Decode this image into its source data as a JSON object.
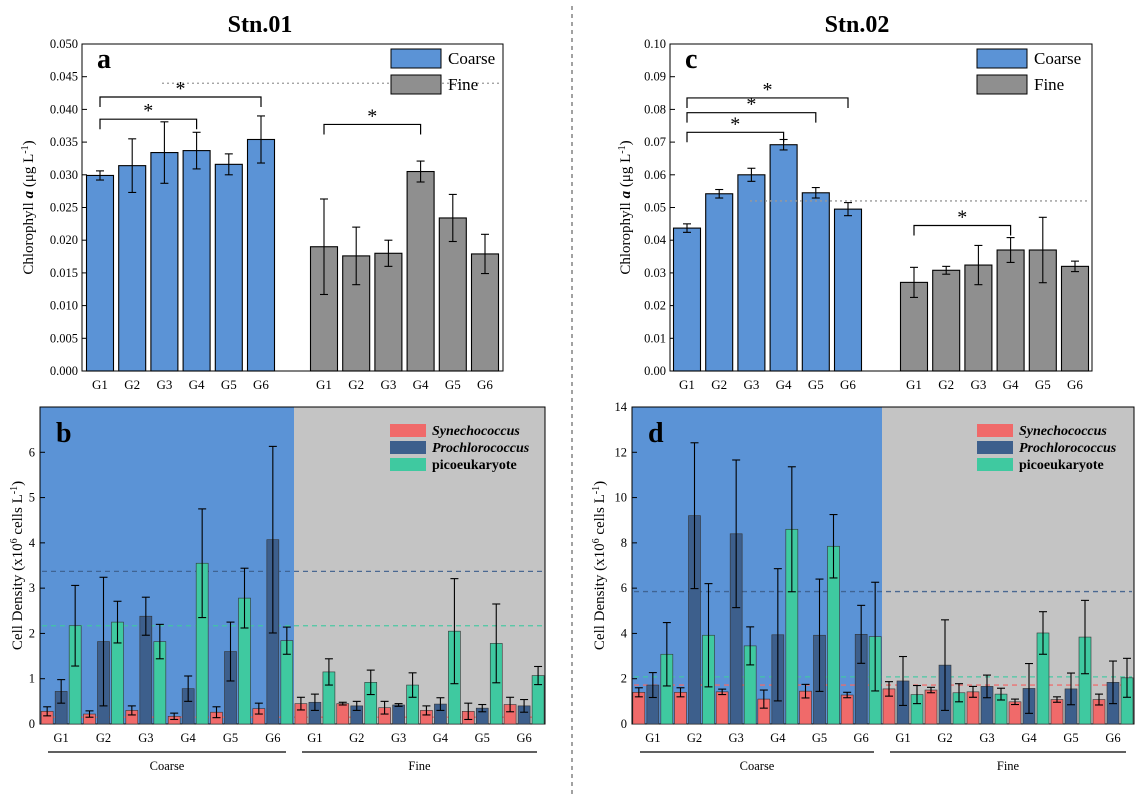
{
  "stations": [
    "Stn.01",
    "Stn.02"
  ],
  "legend_top": [
    "Coarse",
    "Fine"
  ],
  "legend_bottom": [
    "Synechococcus",
    "Prochlorococcus",
    "picoeukaryote"
  ],
  "group_labels": [
    "Coarse",
    "Fine"
  ],
  "colors": {
    "coarse": "#5b93d6",
    "fine": "#8f8f8f",
    "panel_bg_coarse": "#5b93d6",
    "panel_bg_fine": "#c4c4c4",
    "synechococcus": "#f06a6a",
    "prochlorococcus": "#3d5f8c",
    "picoeukaryote": "#3fc9a0"
  },
  "chart_data": [
    {
      "panel": "a",
      "type": "bar",
      "ylabel": "Chlorophyll a (μg L⁻¹)",
      "ylim": [
        0,
        0.05
      ],
      "yticks": [
        "0.000",
        "0.005",
        "0.010",
        "0.015",
        "0.020",
        "0.025",
        "0.030",
        "0.035",
        "0.040",
        "0.045",
        "0.050"
      ],
      "categories": [
        "G1",
        "G2",
        "G3",
        "G4",
        "G5",
        "G6"
      ],
      "series": [
        {
          "name": "Coarse",
          "values": [
            0.0299,
            0.0314,
            0.0334,
            0.0337,
            0.0316,
            0.0354
          ],
          "errors": [
            0.0007,
            0.0041,
            0.0047,
            0.0028,
            0.0016,
            0.0036
          ]
        },
        {
          "name": "Fine",
          "values": [
            0.019,
            0.0176,
            0.018,
            0.0305,
            0.0234,
            0.0179
          ],
          "errors": [
            0.0073,
            0.0044,
            0.002,
            0.0016,
            0.0036,
            0.003
          ]
        }
      ],
      "reference_line": 0.044,
      "significance": [
        {
          "group": "Coarse",
          "from": "G1",
          "to": "G6",
          "label": "*",
          "level": 0.0419
        },
        {
          "group": "Coarse",
          "from": "G1",
          "to": "G4",
          "label": "*",
          "level": 0.0385
        },
        {
          "group": "Fine",
          "from": "G1",
          "to": "G4",
          "label": "*",
          "level": 0.0377
        }
      ]
    },
    {
      "panel": "b",
      "type": "bar",
      "ylabel": "Cell Density (x10⁶ cells L⁻¹)",
      "ylim": [
        0,
        7
      ],
      "yticks": [
        "0",
        "1",
        "2",
        "3",
        "4",
        "5",
        "6"
      ],
      "groups": [
        "Coarse",
        "Fine"
      ],
      "categories": [
        "G1",
        "G2",
        "G3",
        "G4",
        "G5",
        "G6"
      ],
      "series": [
        {
          "name": "Synechococcus",
          "coarse": [
            0.28,
            0.22,
            0.3,
            0.17,
            0.26,
            0.34
          ],
          "coarse_err": [
            0.1,
            0.07,
            0.1,
            0.07,
            0.12,
            0.12
          ],
          "fine": [
            0.45,
            0.45,
            0.36,
            0.3,
            0.28,
            0.43
          ],
          "fine_err": [
            0.14,
            0.03,
            0.14,
            0.1,
            0.18,
            0.16
          ]
        },
        {
          "name": "Prochlorococcus",
          "coarse": [
            0.72,
            1.82,
            2.38,
            0.78,
            1.6,
            4.07
          ],
          "coarse_err": [
            0.26,
            1.42,
            0.42,
            0.28,
            0.65,
            2.06
          ],
          "fine": [
            0.48,
            0.4,
            0.42,
            0.44,
            0.35,
            0.4
          ],
          "fine_err": [
            0.18,
            0.1,
            0.03,
            0.14,
            0.08,
            0.14
          ]
        },
        {
          "name": "picoeukaryote",
          "coarse": [
            2.17,
            2.25,
            1.82,
            3.55,
            2.78,
            1.84
          ],
          "coarse_err": [
            0.89,
            0.46,
            0.38,
            1.2,
            0.66,
            0.3
          ],
          "fine": [
            1.15,
            0.92,
            0.86,
            2.05,
            1.78,
            1.07
          ],
          "fine_err": [
            0.29,
            0.27,
            0.27,
            1.16,
            0.87,
            0.2
          ]
        }
      ],
      "reference_lines": [
        {
          "series": "Prochlorococcus",
          "value": 3.37
        },
        {
          "series": "picoeukaryote",
          "value": 2.17
        },
        {
          "series": "Synechococcus",
          "value": 0.15
        }
      ]
    },
    {
      "panel": "c",
      "type": "bar",
      "ylabel": "Chlorophyll a (μg L⁻¹)",
      "ylim": [
        0,
        0.1
      ],
      "yticks": [
        "0.00",
        "0.01",
        "0.02",
        "0.03",
        "0.04",
        "0.05",
        "0.06",
        "0.07",
        "0.08",
        "0.09",
        "0.10"
      ],
      "categories": [
        "G1",
        "G2",
        "G3",
        "G4",
        "G5",
        "G6"
      ],
      "series": [
        {
          "name": "Coarse",
          "values": [
            0.0437,
            0.0542,
            0.06,
            0.0692,
            0.0545,
            0.0495
          ],
          "errors": [
            0.0013,
            0.0013,
            0.002,
            0.0016,
            0.0016,
            0.002
          ]
        },
        {
          "name": "Fine",
          "values": [
            0.0271,
            0.0308,
            0.0324,
            0.037,
            0.037,
            0.032
          ],
          "errors": [
            0.0046,
            0.0012,
            0.006,
            0.0038,
            0.01,
            0.0016
          ]
        }
      ],
      "reference_line": 0.052,
      "significance": [
        {
          "group": "Coarse",
          "from": "G1",
          "to": "G6",
          "label": "*",
          "level": 0.0835
        },
        {
          "group": "Coarse",
          "from": "G1",
          "to": "G5",
          "label": "*",
          "level": 0.079
        },
        {
          "group": "Coarse",
          "from": "G1",
          "to": "G4",
          "label": "*",
          "level": 0.073
        },
        {
          "group": "Fine",
          "from": "G1",
          "to": "G4",
          "label": "*",
          "level": 0.0445
        }
      ]
    },
    {
      "panel": "d",
      "type": "bar",
      "ylabel": "Cell Density (x10⁶ cells L⁻¹)",
      "ylim": [
        0,
        14
      ],
      "yticks": [
        "0",
        "2",
        "4",
        "6",
        "8",
        "10",
        "12",
        "14"
      ],
      "groups": [
        "Coarse",
        "Fine"
      ],
      "categories": [
        "G1",
        "G2",
        "G3",
        "G4",
        "G5",
        "G6"
      ],
      "series": [
        {
          "name": "Synechococcus",
          "coarse": [
            1.4,
            1.4,
            1.42,
            1.1,
            1.45,
            1.28
          ],
          "coarse_err": [
            0.2,
            0.2,
            0.12,
            0.4,
            0.3,
            0.12
          ],
          "fine": [
            1.55,
            1.5,
            1.42,
            0.98,
            1.08,
            1.08
          ],
          "fine_err": [
            0.32,
            0.12,
            0.24,
            0.12,
            0.12,
            0.24
          ]
        },
        {
          "name": "Prochlorococcus",
          "coarse": [
            1.72,
            9.2,
            8.4,
            3.94,
            3.92,
            3.96
          ],
          "coarse_err": [
            0.55,
            3.22,
            3.26,
            2.92,
            2.48,
            1.28
          ],
          "fine": [
            1.9,
            2.6,
            1.66,
            1.57,
            1.55,
            1.84
          ],
          "fine_err": [
            1.08,
            2.0,
            0.5,
            1.1,
            0.7,
            0.94
          ]
        },
        {
          "name": "picoeukaryote",
          "coarse": [
            3.08,
            3.92,
            3.45,
            8.6,
            7.85,
            3.86
          ],
          "coarse_err": [
            1.4,
            2.28,
            0.84,
            2.76,
            1.4,
            2.4
          ],
          "fine": [
            1.3,
            1.38,
            1.32,
            4.02,
            3.84,
            2.04
          ],
          "fine_err": [
            0.4,
            0.4,
            0.26,
            0.94,
            1.62,
            0.86
          ]
        }
      ],
      "reference_lines": [
        {
          "series": "Prochlorococcus",
          "value": 5.85
        },
        {
          "series": "picoeukaryote",
          "value": 2.08
        },
        {
          "series": "Synechococcus",
          "value": 1.72
        }
      ]
    }
  ]
}
